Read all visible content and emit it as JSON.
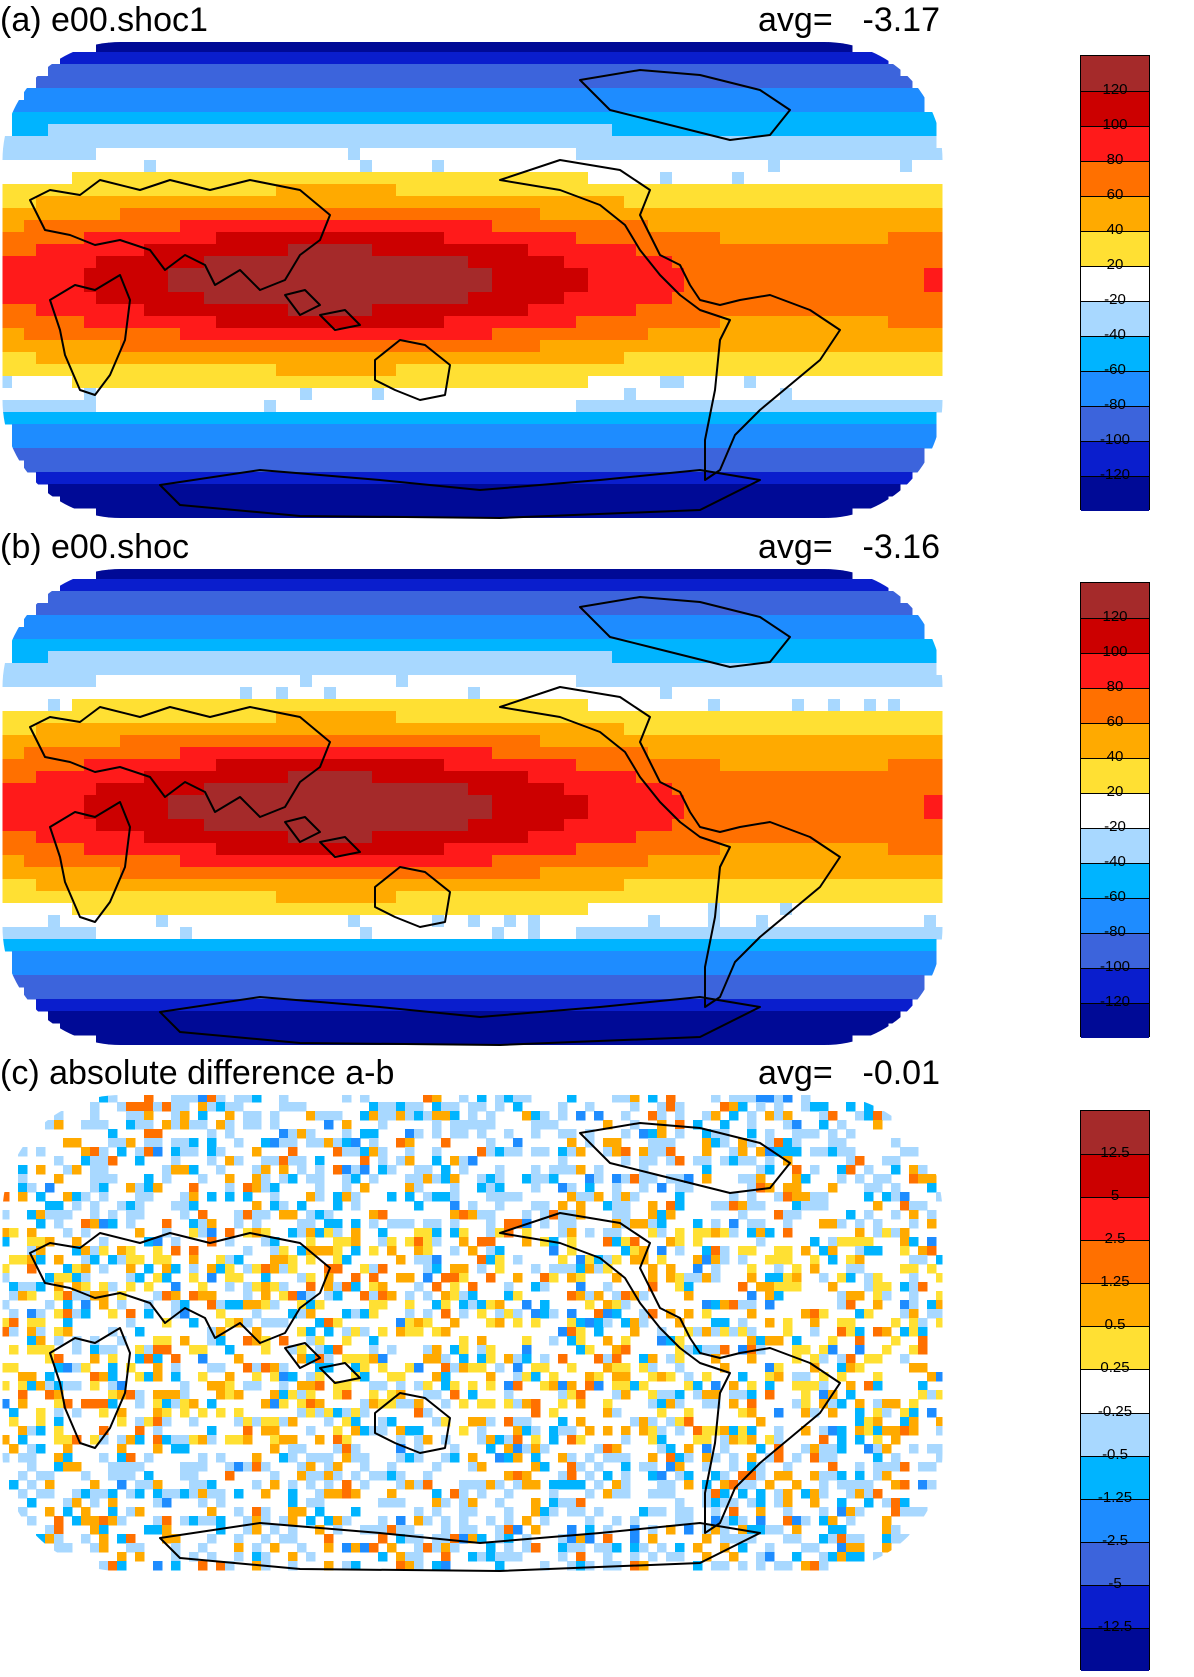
{
  "panels": [
    {
      "id": "a",
      "title": "(a) e00.shoc1",
      "avg_label": "avg=",
      "avg_value": "-3.17",
      "legend": {
        "labels": [
          "120",
          "100",
          "80",
          "60",
          "40",
          "20",
          "-20",
          "-40",
          "-60",
          "-80",
          "-100",
          "-120"
        ],
        "colors": [
          "#a52a2a",
          "#cc0000",
          "#ff1a1a",
          "#ff7000",
          "#ffaa00",
          "#ffe033",
          "#ffffff",
          "#a8d8ff",
          "#00b4ff",
          "#1e8cff",
          "#3c64dc",
          "#0a1ecd",
          "#000a96"
        ]
      }
    },
    {
      "id": "b",
      "title": "(b) e00.shoc",
      "avg_label": "avg=",
      "avg_value": "-3.16",
      "legend": {
        "labels": [
          "120",
          "100",
          "80",
          "60",
          "40",
          "20",
          "-20",
          "-40",
          "-60",
          "-80",
          "-100",
          "-120"
        ],
        "colors": [
          "#a52a2a",
          "#cc0000",
          "#ff1a1a",
          "#ff7000",
          "#ffaa00",
          "#ffe033",
          "#ffffff",
          "#a8d8ff",
          "#00b4ff",
          "#1e8cff",
          "#3c64dc",
          "#0a1ecd",
          "#000a96"
        ]
      }
    },
    {
      "id": "c",
      "title": "(c) absolute difference a-b",
      "avg_label": "avg=",
      "avg_value": "-0.01",
      "legend": {
        "labels": [
          "12.5",
          "5",
          "2.5",
          "1.25",
          "0.5",
          "0.25",
          "-0.25",
          "-0.5",
          "-1.25",
          "-2.5",
          "-5",
          "-12.5"
        ],
        "colors": [
          "#a52a2a",
          "#cc0000",
          "#ff1a1a",
          "#ff7000",
          "#ffaa00",
          "#ffe033",
          "#ffffff",
          "#a8d8ff",
          "#00b4ff",
          "#1e8cff",
          "#3c64dc",
          "#0a1ecd",
          "#000a96"
        ]
      }
    }
  ]
}
